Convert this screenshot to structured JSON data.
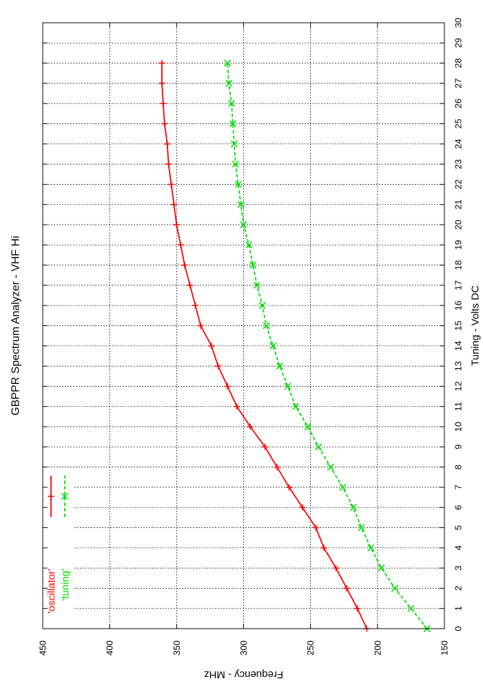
{
  "chart_data": {
    "type": "line",
    "title": "GBPPR Spectrum Analyzer  -  VHF Hi",
    "xlabel": "Tuning  -  Volts DC",
    "ylabel": "Frequency  -  MHz",
    "xlim": [
      0,
      30
    ],
    "ylim": [
      150,
      450
    ],
    "x_ticks": [
      0,
      1,
      2,
      3,
      4,
      5,
      6,
      7,
      8,
      9,
      10,
      11,
      12,
      13,
      14,
      15,
      16,
      17,
      18,
      19,
      20,
      21,
      22,
      23,
      24,
      25,
      26,
      27,
      28,
      29,
      30
    ],
    "x_tick_labels": [
      "0",
      "1",
      "2",
      "3",
      "4",
      "5",
      "6",
      "7",
      "8",
      "9",
      "10",
      "11",
      "12",
      "13",
      "14",
      "15",
      "16",
      "17",
      "18",
      "19",
      "20",
      "21",
      "22",
      "23",
      "24",
      "25",
      "26",
      "27",
      "28",
      "29",
      "30"
    ],
    "y_ticks": [
      150,
      200,
      250,
      300,
      350,
      400,
      450
    ],
    "y_tick_labels": [
      "150",
      "200",
      "250",
      "300",
      "350",
      "400",
      "450"
    ],
    "grid": true,
    "orientation": "rotated-90-clockwise",
    "legend_position": "top-left",
    "x": [
      0,
      1,
      2,
      3,
      4,
      5,
      6,
      7,
      8,
      9,
      10,
      11,
      12,
      13,
      14,
      15,
      16,
      17,
      18,
      19,
      20,
      21,
      22,
      23,
      24,
      25,
      26,
      27,
      28
    ],
    "series": [
      {
        "name": "'oscillator'",
        "color": "#ff0000",
        "marker": "plus",
        "dash": "solid",
        "values": [
          208,
          215,
          223,
          231,
          240,
          246,
          256,
          266,
          275,
          284,
          295,
          305,
          312,
          319,
          324,
          332,
          336,
          340,
          344,
          347,
          350,
          352,
          354,
          356,
          357,
          359,
          360,
          361,
          361
        ]
      },
      {
        "name": "'tuning'",
        "color": "#00e000",
        "marker": "cross",
        "dash": "dashed",
        "values": [
          163,
          175,
          187,
          197,
          205,
          212,
          218,
          226,
          235,
          244,
          252,
          261,
          267,
          273,
          278,
          283,
          286,
          290,
          293,
          296,
          300,
          302,
          304,
          306,
          307,
          308,
          309,
          311,
          312
        ]
      }
    ]
  }
}
